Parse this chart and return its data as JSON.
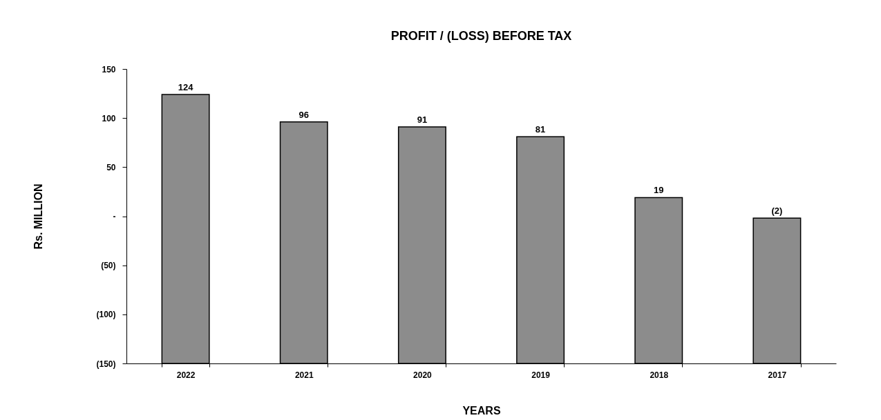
{
  "chart_data": {
    "type": "bar",
    "title": "PROFIT / (LOSS) BEFORE TAX",
    "xlabel": "YEARS",
    "ylabel": "Rs. MILLION",
    "categories": [
      "2022",
      "2021",
      "2020",
      "2019",
      "2018",
      "2017"
    ],
    "base": [
      -150,
      -150,
      -150,
      -150,
      -150,
      -150
    ],
    "values": [
      274,
      246,
      241,
      231,
      169,
      148
    ],
    "value_labels": [
      "124",
      "96",
      "91",
      "81",
      "19",
      "(2)"
    ],
    "color": "#8c8c8c",
    "ylim": [
      -150,
      150
    ],
    "yticks": [
      150,
      100,
      50,
      {
        "value": 0,
        "label": "-"
      },
      {
        "value": -50,
        "label": "(50)"
      },
      {
        "value": -100,
        "label": "(100)"
      },
      {
        "value": -150,
        "label": "(150)"
      }
    ],
    "grid": false
  }
}
